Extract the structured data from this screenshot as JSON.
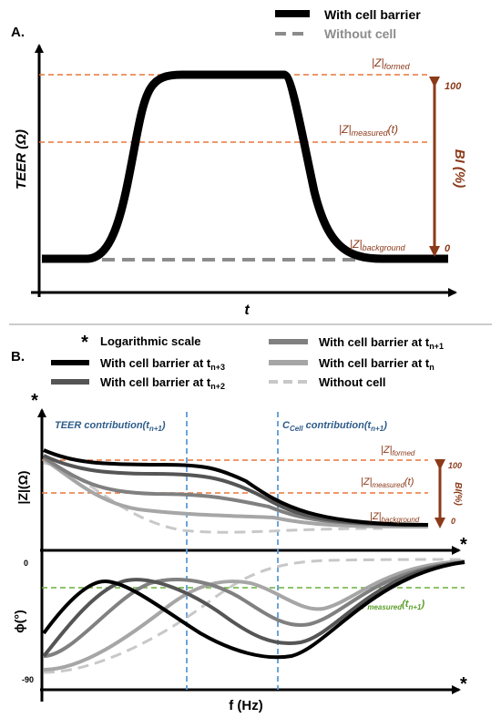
{
  "panel_a": {
    "label": "A.",
    "legend": {
      "solid": "With cell barrier",
      "dashed": "Without cell"
    },
    "ylabel": "TEER (Ω)",
    "xlabel": "t",
    "levels": {
      "formed_base": "|Z|",
      "formed_sub": "formed",
      "measured_base": "|Z|",
      "measured_sub": "measured",
      "measured_suffix": "(t)",
      "background_base": "|Z|",
      "background_sub": "background"
    },
    "bi_label": "BI (%)",
    "bi_top": "100",
    "bi_bottom": "0"
  },
  "panel_b": {
    "label": "B.",
    "legend": {
      "log_star": "*",
      "log_text": "Logarithmic scale",
      "n3_base": "With cell barrier at t",
      "n3_sub": "n+3",
      "n2_base": "With cell barrier at t",
      "n2_sub": "n+2",
      "n1_base": "With cell barrier at t",
      "n1_sub": "n+1",
      "n_base": "With cell barrier at t",
      "n_sub": "n",
      "nocell": "Without cell"
    },
    "teer_contrib_base": "TEER contribution(t",
    "teer_contrib_sub": "n+1",
    "teer_contrib_end": ")",
    "ccell_base": "C",
    "ccell_sub": "Cell",
    "ccell_mid": " contribution(t",
    "ccell_sub2": "n+1",
    "ccell_end": ")",
    "ylabel_top": "|Z|(Ω)",
    "ylabel_bottom": "ϕ(°)",
    "xlabel": "f (Hz)",
    "star": "*",
    "tick_zero": "0",
    "tick_neg90": "-90",
    "levels": {
      "formed_base": "|Z|",
      "formed_sub": "formed",
      "measured_base": "|Z|",
      "measured_sub": "measured",
      "measured_suffix": "(t)",
      "background_base": "|Z|",
      "background_sub": "background"
    },
    "bi_label": "BI(%)",
    "bi_top": "100",
    "bi_bottom": "0",
    "phi_measured_base": "ϕ",
    "phi_measured_sub": "measured",
    "phi_measured_end": "(t",
    "phi_measured_sub2": "n+1",
    "phi_measured_end2": ")"
  },
  "colors": {
    "level_line": "#E8773A",
    "level_text": "#8B3A1A",
    "bi_arrow": "#8B3A1A",
    "blue_dash": "#5B9BD5",
    "blue_text": "#2E5C8A",
    "green_dash": "#6AAF3A",
    "green_text": "#5A9E2A",
    "n3": "#000000",
    "n2": "#555555",
    "n1": "#808080",
    "n": "#A6A6A6",
    "nocell": "#C8C8C8"
  }
}
